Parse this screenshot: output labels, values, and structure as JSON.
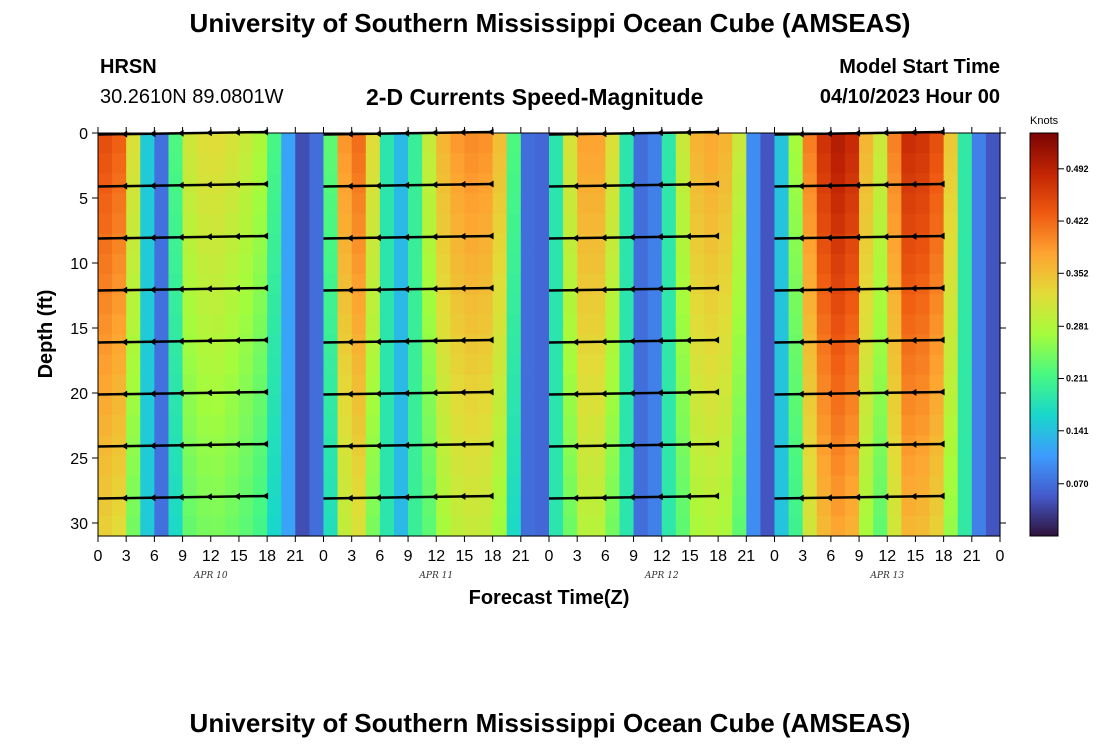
{
  "title": "University of Southern Mississippi Ocean Cube (AMSEAS)",
  "station": {
    "name": "HRSN",
    "coords": "30.2610N  89.0801W"
  },
  "model_start": {
    "label": "Model Start Time",
    "value": "04/10/2023 Hour 00"
  },
  "chart_data": {
    "type": "heatmap",
    "title": "2-D Currents Speed-Magnitude",
    "xlabel": "Forecast Time(Z)",
    "ylabel": "Depth (ft)",
    "x_range_hours": [
      0,
      96
    ],
    "ylim": [
      0,
      31
    ],
    "x_tick_hours": [
      0,
      3,
      6,
      9,
      12,
      15,
      18,
      21,
      24,
      27,
      30,
      33,
      36,
      39,
      42,
      45,
      48,
      51,
      54,
      57,
      60,
      63,
      66,
      69,
      72,
      75,
      78,
      81,
      84,
      87,
      90,
      93,
      96
    ],
    "x_tick_labels": [
      "0",
      "3",
      "6",
      "9",
      "12",
      "15",
      "18",
      "21",
      "0",
      "3",
      "6",
      "9",
      "12",
      "15",
      "18",
      "21",
      "0",
      "3",
      "6",
      "9",
      "12",
      "15",
      "18",
      "21",
      "0",
      "3",
      "6",
      "9",
      "12",
      "15",
      "18",
      "21",
      "0"
    ],
    "day_labels": [
      {
        "hour": 12,
        "label": "APR 10"
      },
      {
        "hour": 36,
        "label": "APR 11"
      },
      {
        "hour": 60,
        "label": "APR 12"
      },
      {
        "hour": 84,
        "label": "APR 13"
      }
    ],
    "y_ticks": [
      0,
      5,
      10,
      15,
      20,
      25,
      30
    ],
    "y_tick_labels": [
      "0",
      "5",
      "10",
      "15",
      "20",
      "25",
      "30"
    ],
    "colorbar": {
      "unit": "Knots",
      "min": 0,
      "max": 0.54,
      "tick_values": [
        0.492,
        0.422,
        0.352,
        0.281,
        0.211,
        0.141,
        0.07
      ],
      "tick_labels": [
        "0.492",
        "0.422",
        "0.352",
        "0.281",
        "0.211",
        "0.141",
        "0.070"
      ]
    },
    "speed_profile": {
      "hours": [
        0,
        1.5,
        3,
        4.5,
        5.5,
        6.5,
        7.5,
        9,
        12,
        15,
        18,
        19.5,
        21,
        22.5,
        24,
        25.5,
        27,
        28.5,
        30,
        31.5,
        33,
        36,
        39,
        42,
        43.5,
        45,
        46.5,
        48,
        49.5,
        51,
        52.5,
        54,
        55.5,
        57,
        58.5,
        60,
        63,
        66,
        68,
        69.5,
        70.5,
        72,
        74,
        76,
        78,
        80,
        81.5,
        82.5,
        84,
        86,
        88,
        90,
        91.5,
        93,
        94.5,
        96
      ],
      "knots": [
        0.43,
        0.46,
        0.4,
        0.24,
        0.12,
        0.05,
        0.14,
        0.3,
        0.33,
        0.31,
        0.27,
        0.16,
        0.07,
        0.02,
        0.12,
        0.34,
        0.44,
        0.4,
        0.25,
        0.12,
        0.15,
        0.35,
        0.4,
        0.39,
        0.32,
        0.12,
        0.02,
        0.11,
        0.26,
        0.37,
        0.39,
        0.37,
        0.27,
        0.1,
        0.04,
        0.13,
        0.36,
        0.38,
        0.34,
        0.12,
        0.02,
        0.08,
        0.25,
        0.43,
        0.5,
        0.5,
        0.4,
        0.25,
        0.36,
        0.48,
        0.47,
        0.43,
        0.26,
        0.12,
        0.05,
        0.05
      ]
    },
    "vector_depths_ft": [
      0,
      4,
      8,
      12,
      16,
      20,
      24,
      28
    ],
    "vector_segments": [
      {
        "start_hour": 0,
        "end_hour": 18,
        "direction": "west"
      },
      {
        "start_hour": 24,
        "end_hour": 42,
        "direction": "west"
      },
      {
        "start_hour": 48,
        "end_hour": 66,
        "direction": "west"
      },
      {
        "start_hour": 72,
        "end_hour": 90,
        "direction": "west"
      }
    ]
  }
}
